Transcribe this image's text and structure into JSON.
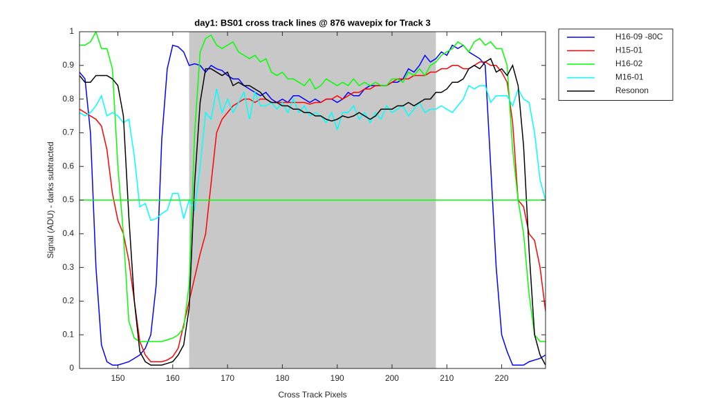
{
  "chart_data": {
    "type": "line",
    "title": "day1: BS01  cross track lines @ 876 wavepix for Track 3",
    "x_label": "Cross Track Pixels",
    "y_label": "Signal (ADU) - darks subtracted",
    "x": [
      143,
      144,
      145,
      146,
      147,
      148,
      149,
      150,
      151,
      152,
      153,
      154,
      155,
      156,
      157,
      158,
      159,
      160,
      161,
      162,
      163,
      164,
      165,
      166,
      167,
      168,
      169,
      170,
      171,
      172,
      173,
      174,
      175,
      176,
      177,
      178,
      179,
      180,
      181,
      182,
      183,
      184,
      185,
      186,
      187,
      188,
      189,
      190,
      191,
      192,
      193,
      194,
      195,
      196,
      197,
      198,
      199,
      200,
      201,
      202,
      203,
      204,
      205,
      206,
      207,
      208,
      209,
      210,
      211,
      212,
      213,
      214,
      215,
      216,
      217,
      218,
      219,
      220,
      221,
      222,
      223,
      224,
      225,
      226,
      227,
      228
    ],
    "series": [
      {
        "name": "H16-09 -80C",
        "color": "#0000ff",
        "values": [
          0.88,
          0.86,
          0.7,
          0.3,
          0.07,
          0.02,
          0.01,
          0.01,
          0.015,
          0.02,
          0.03,
          0.04,
          0.06,
          0.1,
          0.25,
          0.68,
          0.89,
          0.96,
          0.955,
          0.94,
          0.9,
          0.905,
          0.9,
          0.88,
          0.9,
          0.89,
          0.885,
          0.87,
          0.86,
          0.86,
          0.84,
          0.83,
          0.82,
          0.81,
          0.82,
          0.8,
          0.79,
          0.8,
          0.79,
          0.81,
          0.81,
          0.8,
          0.79,
          0.8,
          0.79,
          0.8,
          0.8,
          0.79,
          0.8,
          0.82,
          0.81,
          0.81,
          0.83,
          0.84,
          0.84,
          0.84,
          0.84,
          0.85,
          0.85,
          0.86,
          0.89,
          0.88,
          0.9,
          0.93,
          0.91,
          0.92,
          0.94,
          0.93,
          0.96,
          0.95,
          0.96,
          0.94,
          0.93,
          0.92,
          0.9,
          0.6,
          0.3,
          0.1,
          0.05,
          0.01,
          0.01,
          0.01,
          0.02,
          0.025,
          0.03,
          0.04
        ]
      },
      {
        "name": "H15-01",
        "color": "#ff0000",
        "values": [
          0.77,
          0.76,
          0.75,
          0.74,
          0.72,
          0.65,
          0.52,
          0.44,
          0.4,
          0.32,
          0.2,
          0.08,
          0.04,
          0.02,
          0.02,
          0.02,
          0.025,
          0.035,
          0.06,
          0.13,
          0.2,
          0.27,
          0.34,
          0.4,
          0.55,
          0.7,
          0.74,
          0.76,
          0.78,
          0.79,
          0.8,
          0.8,
          0.79,
          0.8,
          0.8,
          0.79,
          0.79,
          0.79,
          0.79,
          0.79,
          0.79,
          0.79,
          0.785,
          0.79,
          0.79,
          0.8,
          0.8,
          0.81,
          0.8,
          0.81,
          0.82,
          0.82,
          0.83,
          0.83,
          0.84,
          0.84,
          0.84,
          0.85,
          0.86,
          0.86,
          0.86,
          0.87,
          0.87,
          0.87,
          0.88,
          0.88,
          0.89,
          0.89,
          0.9,
          0.9,
          0.89,
          0.89,
          0.9,
          0.91,
          0.91,
          0.9,
          0.9,
          0.88,
          0.85,
          0.73,
          0.5,
          0.48,
          0.4,
          0.38,
          0.3,
          0.17
        ]
      },
      {
        "name": "H16-02",
        "color": "#00ff00",
        "values": [
          0.96,
          0.96,
          0.97,
          1.0,
          0.95,
          0.95,
          0.89,
          0.6,
          0.4,
          0.14,
          0.09,
          0.08,
          0.08,
          0.08,
          0.08,
          0.08,
          0.085,
          0.09,
          0.1,
          0.12,
          0.25,
          0.7,
          0.94,
          0.98,
          0.99,
          0.96,
          0.95,
          0.96,
          0.97,
          0.94,
          0.93,
          0.92,
          0.93,
          0.91,
          0.92,
          0.88,
          0.87,
          0.88,
          0.86,
          0.86,
          0.85,
          0.84,
          0.86,
          0.83,
          0.84,
          0.86,
          0.85,
          0.84,
          0.85,
          0.84,
          0.86,
          0.84,
          0.85,
          0.84,
          0.85,
          0.84,
          0.84,
          0.86,
          0.86,
          0.85,
          0.88,
          0.87,
          0.89,
          0.87,
          0.9,
          0.91,
          0.93,
          0.94,
          0.95,
          0.97,
          0.96,
          0.94,
          0.97,
          0.98,
          0.96,
          0.97,
          0.95,
          0.95,
          0.9,
          0.65,
          0.5,
          0.4,
          0.22,
          0.1,
          0.08,
          0.08
        ]
      },
      {
        "name": "M16-01",
        "color": "#00ffff",
        "values": [
          0.76,
          0.75,
          0.76,
          0.78,
          0.81,
          0.75,
          0.76,
          0.75,
          0.73,
          0.74,
          0.63,
          0.48,
          0.49,
          0.44,
          0.445,
          0.46,
          0.47,
          0.52,
          0.52,
          0.445,
          0.5,
          0.47,
          0.6,
          0.76,
          0.74,
          0.83,
          0.76,
          0.8,
          0.76,
          0.79,
          0.82,
          0.74,
          0.82,
          0.78,
          0.78,
          0.79,
          0.77,
          0.79,
          0.76,
          0.8,
          0.76,
          0.78,
          0.75,
          0.76,
          0.75,
          0.73,
          0.76,
          0.71,
          0.76,
          0.76,
          0.78,
          0.74,
          0.76,
          0.73,
          0.76,
          0.74,
          0.78,
          0.76,
          0.77,
          0.78,
          0.75,
          0.77,
          0.79,
          0.76,
          0.77,
          0.77,
          0.78,
          0.77,
          0.76,
          0.78,
          0.8,
          0.84,
          0.83,
          0.84,
          0.84,
          0.79,
          0.81,
          0.81,
          0.81,
          0.78,
          0.83,
          0.8,
          0.79,
          0.7,
          0.56,
          0.5
        ]
      },
      {
        "name": "Resonon",
        "color": "#000000",
        "values": [
          0.87,
          0.85,
          0.85,
          0.87,
          0.87,
          0.87,
          0.86,
          0.84,
          0.75,
          0.45,
          0.2,
          0.05,
          0.02,
          0.01,
          0.01,
          0.01,
          0.015,
          0.02,
          0.04,
          0.07,
          0.18,
          0.55,
          0.79,
          0.89,
          0.89,
          0.88,
          0.87,
          0.88,
          0.84,
          0.85,
          0.84,
          0.84,
          0.83,
          0.82,
          0.8,
          0.79,
          0.79,
          0.78,
          0.78,
          0.77,
          0.77,
          0.76,
          0.76,
          0.75,
          0.75,
          0.74,
          0.735,
          0.74,
          0.75,
          0.745,
          0.75,
          0.76,
          0.75,
          0.74,
          0.75,
          0.77,
          0.77,
          0.77,
          0.78,
          0.78,
          0.79,
          0.78,
          0.79,
          0.8,
          0.8,
          0.82,
          0.82,
          0.83,
          0.85,
          0.85,
          0.86,
          0.89,
          0.9,
          0.89,
          0.91,
          0.92,
          0.88,
          0.89,
          0.87,
          0.9,
          0.84,
          0.66,
          0.35,
          0.1,
          0.04,
          0.01
        ]
      }
    ],
    "shaded_region": {
      "x": [
        163,
        208
      ],
      "color": "#c8c8c8"
    },
    "hline": {
      "value": 0.5,
      "color": "#00ff00"
    },
    "xlim": [
      143,
      228
    ],
    "xticks": [
      150,
      160,
      170,
      180,
      190,
      200,
      210,
      220
    ],
    "ylim": [
      0,
      1
    ],
    "yticks": [
      0,
      0.1,
      0.2,
      0.3,
      0.4,
      0.5,
      0.6,
      0.7,
      0.8,
      0.9,
      1
    ],
    "grid": false,
    "legend": "outside-top-right"
  }
}
